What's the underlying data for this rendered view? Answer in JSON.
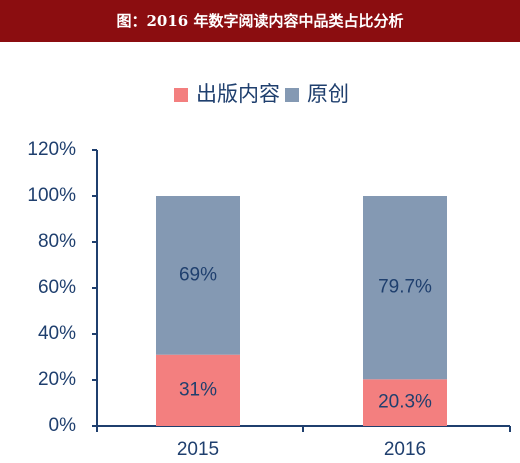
{
  "header": {
    "title": "图：2016 年数字阅读内容中品类占比分析",
    "background": "#8b0d10"
  },
  "chart_data": {
    "type": "bar",
    "stacked": true,
    "categories": [
      "2015",
      "2016"
    ],
    "series": [
      {
        "name": "出版内容",
        "values": [
          31,
          20.3
        ],
        "labels": [
          "31%",
          "20.3%"
        ],
        "color": "#f37f7f"
      },
      {
        "name": "原创",
        "values": [
          69,
          79.7
        ],
        "labels": [
          "69%",
          "79.7%"
        ],
        "color": "#8499b3"
      }
    ],
    "y_ticks": [
      "0%",
      "20%",
      "40%",
      "60%",
      "80%",
      "100%",
      "120%"
    ],
    "y_tick_values": [
      0,
      20,
      40,
      60,
      80,
      100,
      120
    ],
    "ylim": [
      0,
      120
    ],
    "title": "",
    "xlabel": "",
    "ylabel": "",
    "legend_position": "top-center",
    "grid": false,
    "axis_color": "#1f3f6e",
    "label_color": "#1f3f6e"
  }
}
